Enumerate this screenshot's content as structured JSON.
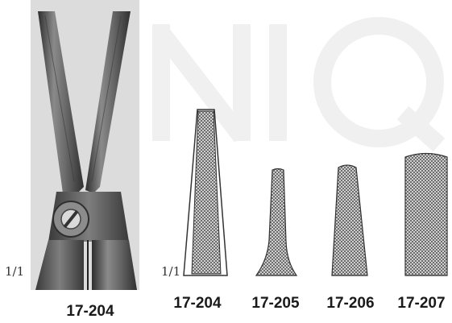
{
  "watermark": {
    "text": "NIQ",
    "color": "#f1f1f1"
  },
  "instrument": {
    "label": "17-204",
    "scale": "1/1",
    "metal_color": "#5a5a5a"
  },
  "tip_profiles": {
    "scale": "1/1",
    "items": [
      {
        "label": "17-204",
        "shape": "long-tapered"
      },
      {
        "label": "17-205",
        "shape": "short-flared"
      },
      {
        "label": "17-206",
        "shape": "medium-tapered"
      },
      {
        "label": "17-207",
        "shape": "wide-straight"
      }
    ],
    "texture": "cross-hatch"
  }
}
